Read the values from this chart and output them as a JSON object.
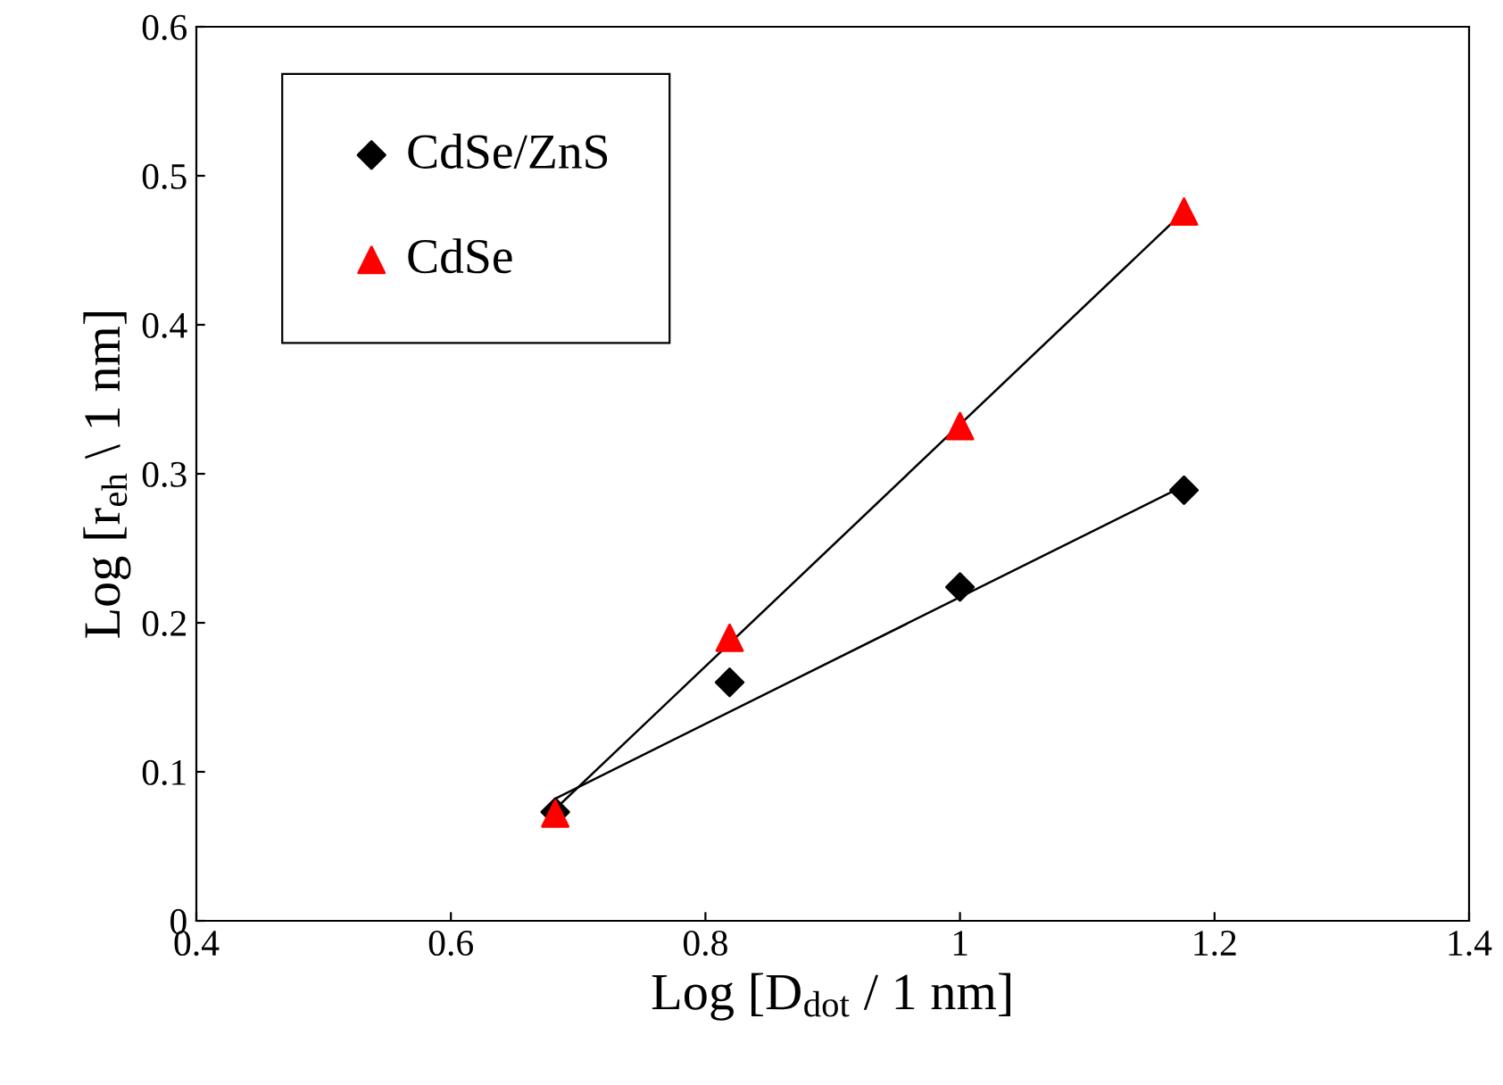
{
  "chart_data": {
    "type": "scatter",
    "xlabel": "Log [D$_{dot}$ / 1 nm]",
    "ylabel": "Log [r$_{eh}$ \\ 1 nm]",
    "xlim": [
      0.4,
      1.4
    ],
    "xticks": [
      0.4,
      0.6,
      0.8,
      {
        "value": 1.0,
        "label": "1"
      },
      1.2,
      1.4
    ],
    "ylim": [
      0,
      0.6
    ],
    "yticks": [
      {
        "value": 0,
        "label": "0"
      },
      0.1,
      0.2,
      0.3,
      0.4,
      0.5,
      0.6
    ],
    "grid": false,
    "legend": "top left",
    "series": [
      {
        "name": "CdSe/ZnS",
        "marker": "diamond",
        "color": "#000000",
        "x": [
          0.682,
          0.819,
          1.0,
          1.176
        ],
        "values": [
          0.073,
          0.16,
          0.224,
          0.289
        ]
      },
      {
        "name": "CdSe",
        "marker": "triangle",
        "color": "#ff0000",
        "x": [
          0.682,
          0.819,
          1.0,
          1.176
        ],
        "values": [
          0.072,
          0.19,
          0.332,
          0.476
        ]
      },
      {
        "type": "line",
        "marker": "none",
        "color": "#000000",
        "x": [
          0.682,
          1.176
        ],
        "values": [
          0.082,
          0.292
        ]
      },
      {
        "type": "line",
        "marker": "none",
        "color": "#000000",
        "x": [
          0.682,
          1.176
        ],
        "values": [
          0.075,
          0.476
        ]
      }
    ]
  }
}
